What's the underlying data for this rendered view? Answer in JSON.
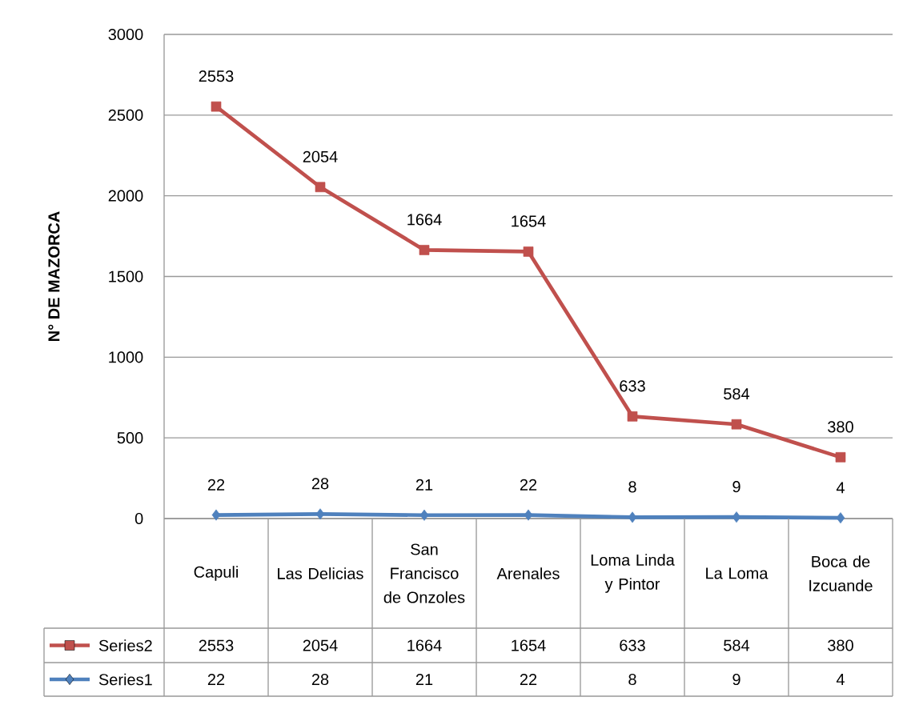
{
  "chart_data": {
    "type": "line",
    "ylabel": "N° DE MAZORCA",
    "categories": [
      "Capuli",
      "Las Delicias",
      "San Francisco de Onzoles",
      "Arenales",
      "Loma Linda y Pintor",
      "La Loma",
      "Boca de Izcuande"
    ],
    "series": [
      {
        "name": "Series2",
        "color": "#c0504d",
        "marker": "square",
        "values": [
          2553,
          2054,
          1664,
          1654,
          633,
          584,
          380
        ],
        "value_labels": [
          "2553",
          "2054",
          "1664",
          "1654",
          "633",
          "584",
          "380"
        ]
      },
      {
        "name": "Series1",
        "color": "#4f81bd",
        "marker": "diamond",
        "values": [
          22,
          28,
          21,
          22,
          8,
          9,
          4
        ],
        "value_labels": [
          "22",
          "28",
          "21",
          "22",
          "8",
          "9",
          "4"
        ]
      }
    ],
    "ylim": [
      0,
      3000
    ],
    "yticks": [
      0,
      500,
      1000,
      1500,
      2000,
      2500,
      3000
    ],
    "grid": "y",
    "data_labels": true,
    "legend": "bottom"
  }
}
